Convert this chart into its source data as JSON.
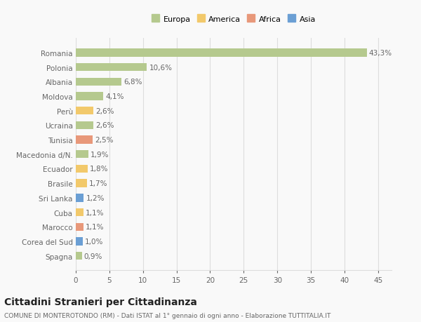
{
  "countries": [
    "Romania",
    "Polonia",
    "Albania",
    "Moldova",
    "Perù",
    "Ucraina",
    "Tunisia",
    "Macedonia d/N.",
    "Ecuador",
    "Brasile",
    "Sri Lanka",
    "Cuba",
    "Marocco",
    "Corea del Sud",
    "Spagna"
  ],
  "values": [
    43.3,
    10.6,
    6.8,
    4.1,
    2.6,
    2.6,
    2.5,
    1.9,
    1.8,
    1.7,
    1.2,
    1.1,
    1.1,
    1.0,
    0.9
  ],
  "labels": [
    "43,3%",
    "10,6%",
    "6,8%",
    "4,1%",
    "2,6%",
    "2,6%",
    "2,5%",
    "1,9%",
    "1,8%",
    "1,7%",
    "1,2%",
    "1,1%",
    "1,1%",
    "1,0%",
    "0,9%"
  ],
  "continents": [
    "Europa",
    "Europa",
    "Europa",
    "Europa",
    "America",
    "Europa",
    "Africa",
    "Europa",
    "America",
    "America",
    "Asia",
    "America",
    "Africa",
    "Asia",
    "Europa"
  ],
  "continent_colors": {
    "Europa": "#b5c98e",
    "America": "#f2c96b",
    "Africa": "#e8987a",
    "Asia": "#6b9fd4"
  },
  "legend_order": [
    "Europa",
    "America",
    "Africa",
    "Asia"
  ],
  "legend_colors": [
    "#b5c98e",
    "#f2c96b",
    "#e8987a",
    "#6b9fd4"
  ],
  "title": "Cittadini Stranieri per Cittadinanza",
  "subtitle": "COMUNE DI MONTEROTONDO (RM) - Dati ISTAT al 1° gennaio di ogni anno - Elaborazione TUTTITALIA.IT",
  "xlim": [
    0,
    47
  ],
  "xticks": [
    0,
    5,
    10,
    15,
    20,
    25,
    30,
    35,
    40,
    45
  ],
  "background_color": "#f9f9f9",
  "bar_height": 0.55,
  "grid_color": "#dddddd",
  "text_color": "#666666",
  "label_fontsize": 7.5,
  "tick_fontsize": 7.5,
  "title_fontsize": 10,
  "subtitle_fontsize": 6.5
}
